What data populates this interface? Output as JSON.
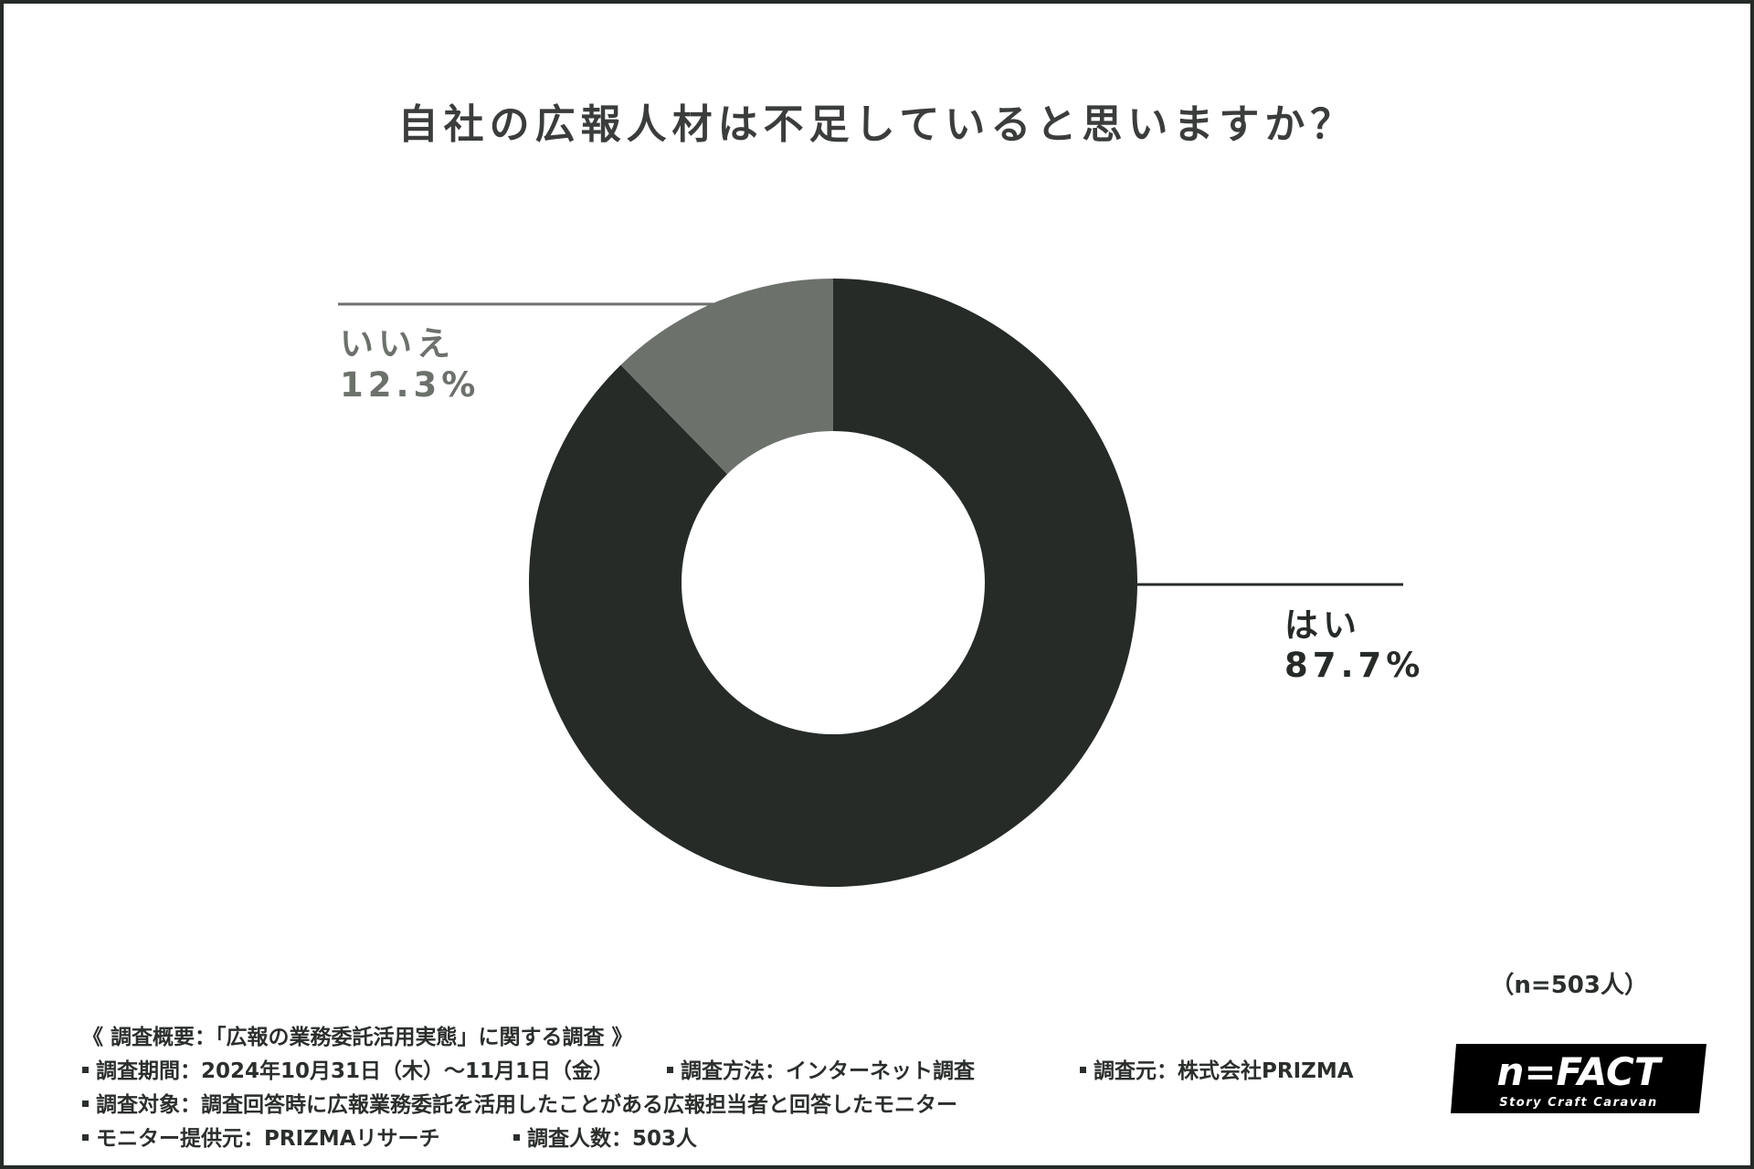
{
  "title": "自社の広報人材は不足していると思いますか？",
  "chart_data": {
    "type": "pie",
    "title": "自社の広報人材は不足していると思いますか？",
    "donut": true,
    "slices": [
      {
        "label": "はい",
        "value": 87.7,
        "display": "87.7%",
        "color": "#262b27"
      },
      {
        "label": "いいえ",
        "value": 12.3,
        "display": "12.3%",
        "color": "#6c716c"
      }
    ]
  },
  "sample_size": "（n=503人）",
  "notes": {
    "heading": "《 調査概要：「広報の業務委託活用実態」に関する調査 》",
    "period": "調査期間：2024年10月31日（木）～11月1日（金）",
    "method": "調査方法：インターネット調査",
    "source": "調査元：株式会社PRIZMA",
    "target": "調査対象：調査回答時に広報業務委託を活用したことがある広報担当者と回答したモニター",
    "provider": "モニター提供元：PRIZMAリサーチ",
    "count": "調査人数：503人"
  },
  "logo": {
    "name": "n=FACT",
    "tagline": "Story Craft Caravan",
    "bg_color": "#000000",
    "fg_color": "#ffffff"
  }
}
